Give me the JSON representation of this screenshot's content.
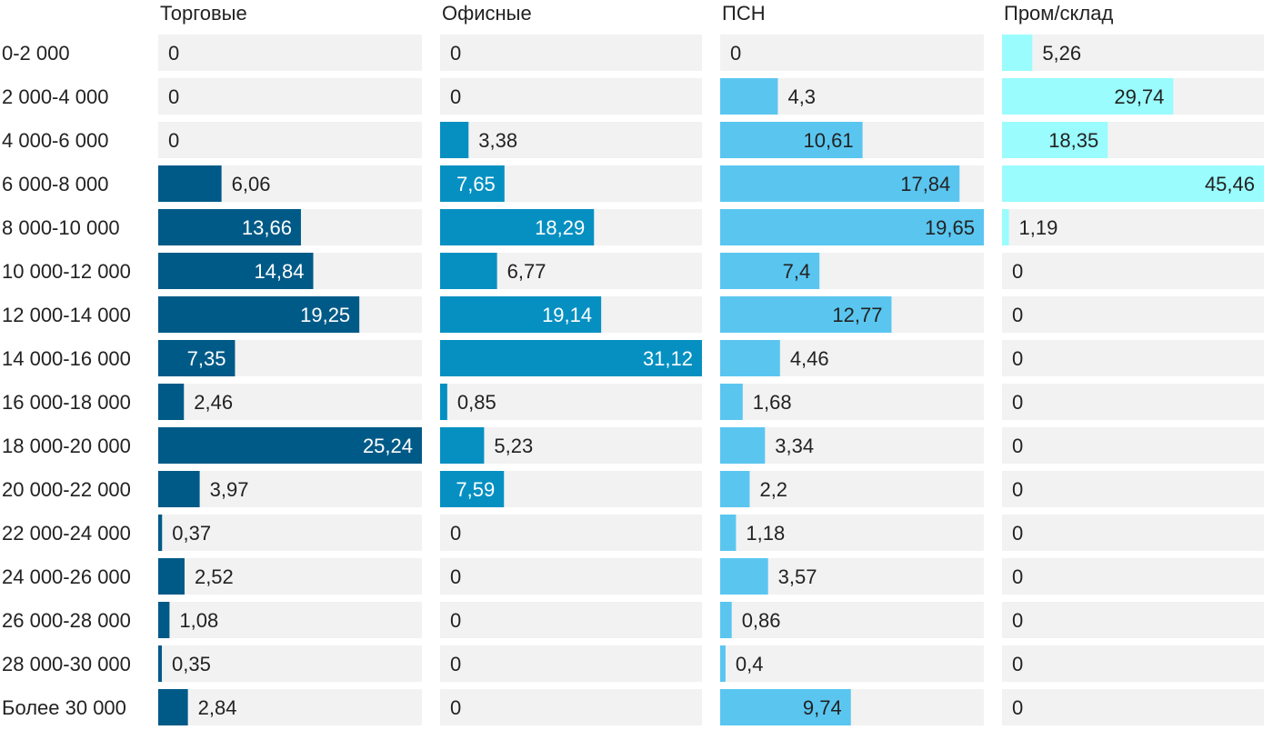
{
  "chart_data": {
    "type": "bar",
    "orientation": "horizontal",
    "layout": "small-multiples",
    "grid": false,
    "xlim": [
      0,
      45.46
    ],
    "value_label_white_threshold": 7,
    "categories": [
      "0-2 000",
      "2 000-4 000",
      "4 000-6 000",
      "6 000-8 000",
      "8 000-10 000",
      "10 000-12 000",
      "12 000-14 000",
      "14 000-16 000",
      "16 000-18 000",
      "18 000-20 000",
      "20 000-22 000",
      "22 000-24 000",
      "24 000-26 000",
      "26 000-28 000",
      "28 000-30 000",
      "Более 30 000"
    ],
    "series": [
      {
        "name": "Торговые",
        "color": "#005a87",
        "label_color_on_bar": "#ffffff",
        "values": [
          0,
          0,
          0,
          6.06,
          13.66,
          14.84,
          19.25,
          7.35,
          2.46,
          25.24,
          3.97,
          0.37,
          2.52,
          1.08,
          0.35,
          2.84
        ],
        "labels": [
          "0",
          "0",
          "0",
          "6,06",
          "13,66",
          "14,84",
          "19,25",
          "7,35",
          "2,46",
          "25,24",
          "3,97",
          "0,37",
          "2,52",
          "1,08",
          "0,35",
          "2,84"
        ]
      },
      {
        "name": "Офисные",
        "color": "#0690c2",
        "label_color_on_bar": "#ffffff",
        "values": [
          0,
          0,
          3.38,
          7.65,
          18.29,
          6.77,
          19.14,
          31.12,
          0.85,
          5.23,
          7.59,
          0,
          0,
          0,
          0,
          0
        ],
        "labels": [
          "0",
          "0",
          "3,38",
          "7,65",
          "18,29",
          "6,77",
          "19,14",
          "31,12",
          "0,85",
          "5,23",
          "7,59",
          "0",
          "0",
          "0",
          "0",
          "0"
        ]
      },
      {
        "name": "ПСН",
        "color": "#5ac6f0",
        "label_color_on_bar": "#222222",
        "values": [
          0,
          4.3,
          10.61,
          17.84,
          19.65,
          7.4,
          12.77,
          4.46,
          1.68,
          3.34,
          2.2,
          1.18,
          3.57,
          0.86,
          0.4,
          9.74
        ],
        "labels": [
          "0",
          "4,3",
          "10,61",
          "17,84",
          "19,65",
          "7,4",
          "12,77",
          "4,46",
          "1,68",
          "3,34",
          "2,2",
          "1,18",
          "3,57",
          "0,86",
          "0,4",
          "9,74"
        ]
      },
      {
        "name": "Пром/склад",
        "color": "#9afcfd",
        "label_color_on_bar": "#222222",
        "values": [
          5.26,
          29.74,
          18.35,
          45.46,
          1.19,
          0,
          0,
          0,
          0,
          0,
          0,
          0,
          0,
          0,
          0,
          0
        ],
        "labels": [
          "5,26",
          "29,74",
          "18,35",
          "45,46",
          "1,19",
          "0",
          "0",
          "0",
          "0",
          "0",
          "0",
          "0",
          "0",
          "0",
          "0",
          "0"
        ]
      }
    ],
    "colors": {
      "track": "#f2f2f2",
      "text": "#222222"
    }
  }
}
